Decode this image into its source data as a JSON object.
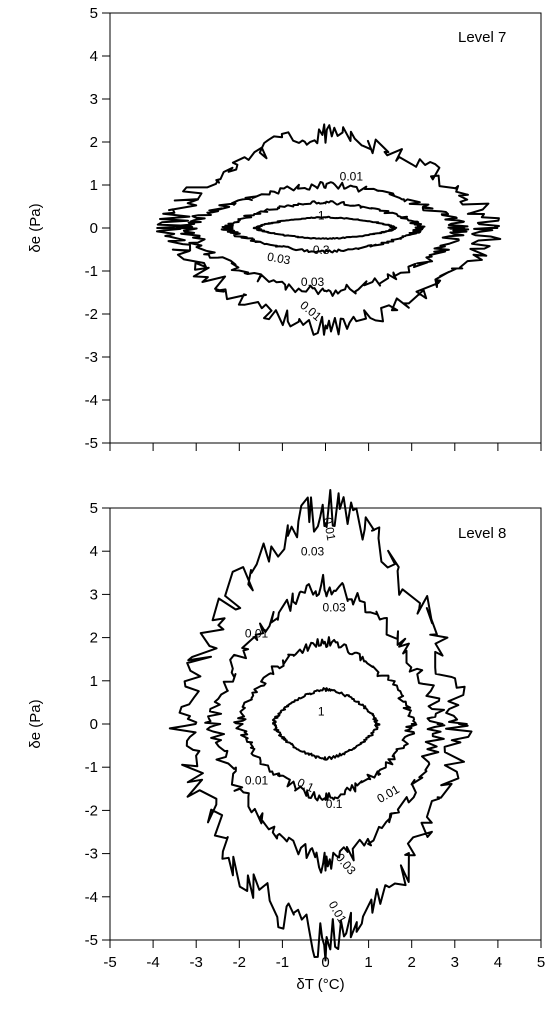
{
  "chart_data": [
    {
      "type": "contour",
      "panel_label": "Level 7",
      "xlabel": "",
      "ylabel": "δe (Pa)",
      "xlim": [
        -5,
        5
      ],
      "ylim": [
        -5,
        5
      ],
      "y_ticks": [
        "5",
        "4",
        "3",
        "2",
        "1",
        "0",
        "-1",
        "-2",
        "-3",
        "-4",
        "-5"
      ],
      "x_tick_labels_shown": false,
      "contours": [
        {
          "level": "1",
          "label": "1",
          "label_at": [
            -0.1,
            0.2
          ],
          "half_width_x": [
            -1.6,
            1.6
          ],
          "half_width_y": [
            -0.25,
            0.25
          ]
        },
        {
          "level": "0.3",
          "label": "0.3",
          "label_at": [
            -0.1,
            -0.6
          ],
          "half_width_x": [
            -2.3,
            2.2
          ],
          "half_width_y": [
            -0.55,
            0.6
          ]
        },
        {
          "level": "0.03",
          "label": "0.03",
          "label_at": [
            -0.3,
            -1.35
          ],
          "half_width_x": [
            -3.2,
            3.1
          ],
          "half_width_y": [
            -1.5,
            1.0
          ]
        },
        {
          "level": "0.01",
          "label": "0.01",
          "label_at": [
            0.6,
            1.1
          ],
          "half_width_x": [
            -3.6,
            3.8
          ],
          "half_width_y": [
            -2.3,
            2.2
          ]
        }
      ],
      "extra_labels": [
        {
          "text": "0.03",
          "at": [
            -1.1,
            -0.8
          ],
          "rotate": 10
        },
        {
          "text": "0.01",
          "at": [
            -0.4,
            -2.0
          ],
          "rotate": 40
        }
      ]
    },
    {
      "type": "contour",
      "panel_label": "Level 8",
      "xlabel": "δT (°C)",
      "ylabel": "δe (Pa)",
      "xlim": [
        -5,
        5
      ],
      "ylim": [
        -5,
        5
      ],
      "x_ticks": [
        "-5",
        "-4",
        "-3",
        "-2",
        "-1",
        "0",
        "1",
        "2",
        "3",
        "4",
        "5"
      ],
      "y_ticks": [
        "5",
        "4",
        "3",
        "2",
        "1",
        "0",
        "-1",
        "-2",
        "-3",
        "-4",
        "-5"
      ],
      "contours": [
        {
          "level": "1",
          "label": "1",
          "label_at": [
            -0.1,
            0.2
          ],
          "half_width_x": [
            -1.2,
            1.2
          ],
          "half_width_y": [
            -0.8,
            0.8
          ]
        },
        {
          "level": "0.1",
          "label": "0.1",
          "label_at": [
            0.2,
            -1.95
          ],
          "half_width_x": [
            -2.0,
            2.0
          ],
          "half_width_y": [
            -1.7,
            1.9
          ]
        },
        {
          "level": "0.03",
          "label": "0.03",
          "label_at": [
            0.2,
            2.6
          ],
          "half_width_x": [
            -2.6,
            2.6
          ],
          "half_width_y": [
            -3.2,
            3.2
          ]
        },
        {
          "level": "0.01",
          "label": "0.01",
          "label_at": [
            -1.6,
            2.0
          ],
          "half_width_x": [
            -3.3,
            3.1
          ],
          "half_width_y": [
            -5.0,
            5.0
          ]
        }
      ],
      "extra_labels": [
        {
          "text": "0.01",
          "at": [
            0.0,
            4.5
          ],
          "rotate": 80
        },
        {
          "text": "0.03",
          "at": [
            -0.3,
            3.9
          ],
          "rotate": 0
        },
        {
          "text": "0.1",
          "at": [
            -0.5,
            -1.5
          ],
          "rotate": 25
        },
        {
          "text": "0.01",
          "at": [
            -1.6,
            -1.4
          ],
          "rotate": 0
        },
        {
          "text": "0.01",
          "at": [
            1.5,
            -1.7
          ],
          "rotate": -30
        },
        {
          "text": "0.03",
          "at": [
            0.4,
            -3.3
          ],
          "rotate": 50
        },
        {
          "text": "0.01",
          "at": [
            0.2,
            -4.4
          ],
          "rotate": 60
        }
      ]
    }
  ]
}
